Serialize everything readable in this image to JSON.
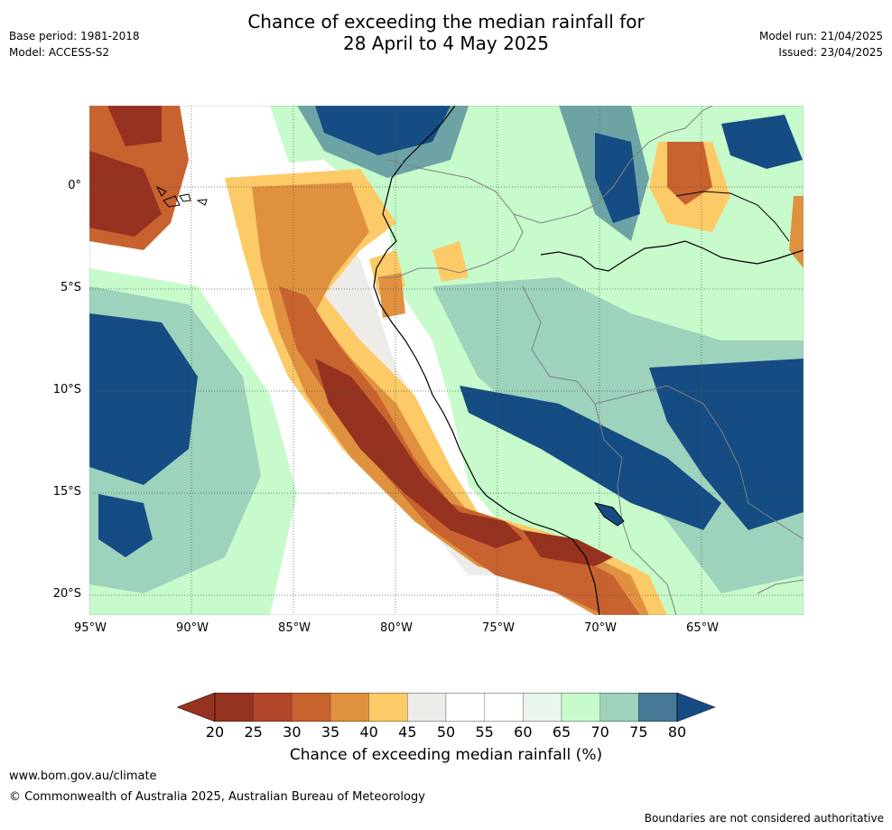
{
  "title_line1": "Chance of exceeding the median rainfall for",
  "title_line2": "28 April to 4 May 2025",
  "base_period": "Base period: 1981-2018",
  "model": "Model: ACCESS-S2",
  "model_run": "Model run: 21/04/2025",
  "issued": "Issued: 23/04/2025",
  "lat_labels": [
    "0°",
    "5°S",
    "10°S",
    "15°S",
    "20°S"
  ],
  "lon_labels": [
    "95°W",
    "90°W",
    "85°W",
    "80°W",
    "75°W",
    "70°W",
    "65°W"
  ],
  "colorbar": {
    "ticks": [
      "20",
      "25",
      "30",
      "35",
      "40",
      "45",
      "50",
      "55",
      "60",
      "65",
      "70",
      "75",
      "80"
    ],
    "colors": [
      "#963220",
      "#b1462b",
      "#c8622f",
      "#e0913f",
      "#fdca68",
      "#eeece8",
      "#ffffff",
      "#ffffff",
      "#eaf6eb",
      "#c7fbcb",
      "#9dd2bc",
      "#6da3a4",
      "#457995"
    ],
    "low_arrow_color": "#963220",
    "high_arrow_color": "#164c84",
    "label": "Chance of exceeding median rainfall (%)"
  },
  "footer": {
    "website": "www.bom.gov.au/climate",
    "copyright": "© Commonwealth of Australia 2025, Australian Bureau of Meteorology",
    "disclaimer": "Boundaries are not considered authoritative"
  }
}
